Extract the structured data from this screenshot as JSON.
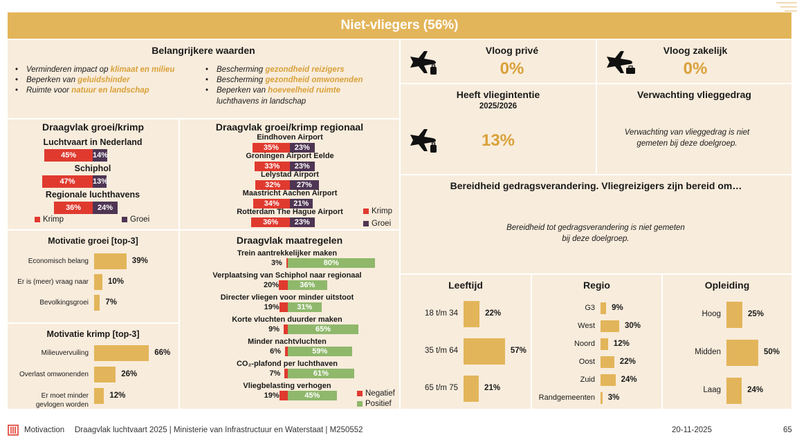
{
  "header": {
    "title": "Niet-vliegers (56%)"
  },
  "values_panel": {
    "title": "Belangrijkere waarden",
    "left": [
      {
        "pre": "Verminderen impact op ",
        "hl": "klimaat en milieu"
      },
      {
        "pre": "Beperken van ",
        "hl": "geluidshinder"
      },
      {
        "pre": "Ruimte voor ",
        "hl": "natuur en landschap"
      }
    ],
    "right": [
      {
        "pre": "Bescherming ",
        "hl": "gezondheid reizigers"
      },
      {
        "pre": "Bescherming ",
        "hl": "gezondheid omwonenden"
      },
      {
        "pre": "Beperken van ",
        "hl": "hoeveelheid ruimte",
        "post": "luchthavens in landschap"
      }
    ]
  },
  "kpis": {
    "private": {
      "label": "Vloog privé",
      "value": "0%"
    },
    "business": {
      "label": "Vloog zakelijk",
      "value": "0%"
    },
    "intent": {
      "label": "Heeft vliegintentie",
      "sub": "2025/2026",
      "value": "13%"
    },
    "expect": {
      "label": "Verwachting vlieggedrag",
      "note": "Verwachting van vlieggedrag is niet gemeten bij deze doelgroep."
    },
    "willing": {
      "label": "Bereidheid gedragsverandering. Vliegreizigers zijn bereid om…",
      "note": "Bereidheid tot gedragsverandering is niet gemeten bij deze doelgroep."
    }
  },
  "legend": {
    "shrink": "Krimp",
    "grow": "Groei",
    "neg": "Negatief",
    "pos": "Positief"
  },
  "colors": {
    "shrink": "#e03a2f",
    "grow": "#4e3553",
    "pos": "#8fb86b",
    "gold": "#e3b55a",
    "panel": "#f8ecdc"
  },
  "chart_data": [
    {
      "type": "bar",
      "title": "Draagvlak groei/krimp",
      "categories": [
        "Luchtvaart in Nederland",
        "Schiphol",
        "Regionale luchthavens"
      ],
      "series": [
        {
          "name": "Krimp",
          "values": [
            45,
            47,
            36
          ],
          "labels": [
            "45%",
            "47%",
            "36%"
          ]
        },
        {
          "name": "Groei",
          "values": [
            14,
            13,
            24
          ],
          "labels": [
            "14%",
            "13%",
            "24%"
          ]
        }
      ]
    },
    {
      "type": "bar",
      "title": "Draagvlak groei/krimp regionaal",
      "categories": [
        "Eindhoven Airport",
        "Groningen Airport Eelde",
        "Lelystad Airport",
        "Maastricht Aachen Airport",
        "Rotterdam The Hague Airport"
      ],
      "series": [
        {
          "name": "Krimp",
          "values": [
            35,
            33,
            32,
            34,
            36
          ],
          "labels": [
            "35%",
            "33%",
            "32%",
            "34%",
            "36%"
          ]
        },
        {
          "name": "Groei",
          "values": [
            23,
            23,
            27,
            21,
            23
          ],
          "labels": [
            "23%",
            "23%",
            "27%",
            "21%",
            "23%"
          ]
        }
      ]
    },
    {
      "type": "bar",
      "title": "Motivatie groei [top-3]",
      "categories": [
        "Economisch belang",
        "Er is (meer) vraag naar",
        "Bevolkingsgroei"
      ],
      "values": [
        39,
        10,
        7
      ],
      "labels": [
        "39%",
        "10%",
        "7%"
      ]
    },
    {
      "type": "bar",
      "title": "Motivatie krimp [top-3]",
      "categories": [
        "Milieuvervuiling",
        "Overlast omwonenden",
        "Er moet minder gevlogen worden"
      ],
      "values": [
        66,
        26,
        12
      ],
      "labels": [
        "66%",
        "26%",
        "12%"
      ]
    },
    {
      "type": "bar",
      "title": "Draagvlak maatregelen",
      "categories": [
        "Trein aantrekkelijker maken",
        "Verplaatsing van Schiphol naar regionaal",
        "Directer vliegen voor minder uitstoot",
        "Korte vluchten duurder maken",
        "Minder nachtvluchten",
        "CO₂-plafond per luchthaven",
        "Vliegbelasting verhogen"
      ],
      "series": [
        {
          "name": "Negatief",
          "values": [
            3,
            20,
            19,
            9,
            6,
            7,
            19
          ],
          "labels": [
            "3%",
            "20%",
            "19%",
            "9%",
            "6%",
            "7%",
            "19%"
          ]
        },
        {
          "name": "Positief",
          "values": [
            80,
            36,
            31,
            65,
            59,
            61,
            45
          ],
          "labels": [
            "80%",
            "36%",
            "31%",
            "65%",
            "59%",
            "61%",
            "45%"
          ]
        }
      ]
    },
    {
      "type": "bar",
      "title": "Leeftijd",
      "categories": [
        "18 t/m 34",
        "35 t/m 64",
        "65 t/m 75"
      ],
      "values": [
        22,
        57,
        21
      ],
      "labels": [
        "22%",
        "57%",
        "21%"
      ]
    },
    {
      "type": "bar",
      "title": "Regio",
      "categories": [
        "G3",
        "West",
        "Noord",
        "Oost",
        "Zuid",
        "Randgemeenten"
      ],
      "values": [
        9,
        30,
        12,
        22,
        24,
        3
      ],
      "labels": [
        "9%",
        "30%",
        "12%",
        "22%",
        "24%",
        "3%"
      ]
    },
    {
      "type": "bar",
      "title": "Opleiding",
      "categories": [
        "Hoog",
        "Midden",
        "Laag"
      ],
      "values": [
        25,
        50,
        24
      ],
      "labels": [
        "25%",
        "50%",
        "24%"
      ]
    }
  ],
  "footer": {
    "brand": "Motivaction",
    "text": "Draagvlak luchtvaart 2025 | Ministerie van Infrastructuur en Waterstaat | M250552",
    "date": "20-11-2025",
    "page": "65"
  }
}
